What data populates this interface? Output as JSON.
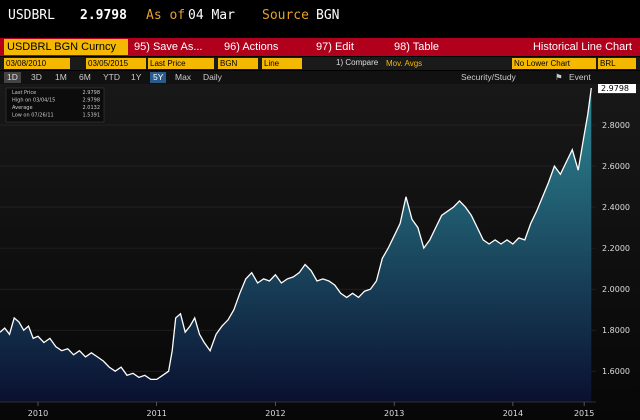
{
  "header": {
    "ticker": "USDBRL",
    "price": "2.9798",
    "as_of_label": "As of",
    "as_of": "04 Mar",
    "source_label": "Source",
    "source": "BGN"
  },
  "menu": {
    "security": "USDBRL BGN Curncy",
    "items": [
      "95) Save As...",
      "96) Actions",
      "97) Edit",
      "98) Table"
    ],
    "title": "Historical Line Chart"
  },
  "controls": {
    "start_date": "03/08/2010",
    "end_date": "03/05/2015",
    "field": "Last Price",
    "source": "BGN",
    "chart_type": "Line",
    "compare_label": "1) Compare",
    "compare_value": "Mov. Avgs",
    "lower_chart": "No Lower Chart",
    "currency": "BRL"
  },
  "range_buttons": [
    "1D",
    "3D",
    "1M",
    "6M",
    "YTD",
    "1Y",
    "5Y",
    "Max"
  ],
  "range_selected": "5Y",
  "periodicity": "Daily",
  "security_study": "Security/Study",
  "event": "Event",
  "legend": {
    "rows": [
      {
        "label": "Last Price",
        "value": "2.9798"
      },
      {
        "label": "High on 03/04/15",
        "value": "2.9798"
      },
      {
        "label": "Average",
        "value": "2.0132"
      },
      {
        "label": "Low on 07/26/11",
        "value": "1.5391"
      }
    ]
  },
  "colors": {
    "accent": "#f5b800",
    "menubar": "#b0001c",
    "line": "#ffffff",
    "area_top": "#2e8a96",
    "area_bottom": "#0a1030"
  },
  "chart_data": {
    "type": "area",
    "title": "",
    "xlabel": "",
    "ylabel": "",
    "ylim": [
      1.45,
      3.0
    ],
    "yticks": [
      1.6,
      1.8,
      2.0,
      2.2,
      2.4,
      2.6,
      2.8
    ],
    "ytick_labels": [
      "1.6000",
      "1.8000",
      "2.0000",
      "2.2000",
      "2.4000",
      "2.6000",
      "2.8000"
    ],
    "last_value_label": "2.9798",
    "xticks": [
      2010.5,
      2011.5,
      2012.5,
      2013.5,
      2014.5,
      2015.1
    ],
    "xtick_labels": [
      "2010",
      "2011",
      "2012",
      "2013",
      "2014",
      "2015"
    ],
    "xlim": [
      2010.18,
      2015.2
    ],
    "series": [
      {
        "x": [
          2010.18,
          2010.22,
          2010.26,
          2010.3,
          2010.34,
          2010.38,
          2010.42,
          2010.46,
          2010.5,
          2010.55,
          2010.6,
          2010.65,
          2010.7,
          2010.75,
          2010.8,
          2010.85,
          2010.9,
          2010.95,
          2011.0,
          2011.05,
          2011.1,
          2011.15,
          2011.2,
          2011.25,
          2011.3,
          2011.35,
          2011.4,
          2011.45,
          2011.5,
          2011.55,
          2011.6,
          2011.63,
          2011.66,
          2011.7,
          2011.74,
          2011.78,
          2011.82,
          2011.86,
          2011.9,
          2011.95,
          2012.0,
          2012.05,
          2012.1,
          2012.15,
          2012.2,
          2012.25,
          2012.3,
          2012.35,
          2012.4,
          2012.45,
          2012.5,
          2012.55,
          2012.6,
          2012.65,
          2012.7,
          2012.75,
          2012.8,
          2012.85,
          2012.9,
          2012.95,
          2013.0,
          2013.05,
          2013.1,
          2013.15,
          2013.2,
          2013.25,
          2013.3,
          2013.35,
          2013.4,
          2013.45,
          2013.5,
          2013.55,
          2013.6,
          2013.65,
          2013.7,
          2013.75,
          2013.8,
          2013.85,
          2013.9,
          2013.95,
          2014.0,
          2014.05,
          2014.1,
          2014.15,
          2014.2,
          2014.25,
          2014.3,
          2014.35,
          2014.4,
          2014.45,
          2014.5,
          2014.55,
          2014.6,
          2014.65,
          2014.7,
          2014.75,
          2014.8,
          2014.85,
          2014.9,
          2014.95,
          2015.0,
          2015.05,
          2015.1,
          2015.13,
          2015.16
        ],
        "y": [
          1.79,
          1.81,
          1.78,
          1.86,
          1.84,
          1.8,
          1.82,
          1.76,
          1.77,
          1.74,
          1.76,
          1.72,
          1.7,
          1.71,
          1.68,
          1.7,
          1.67,
          1.69,
          1.67,
          1.65,
          1.62,
          1.6,
          1.62,
          1.58,
          1.59,
          1.57,
          1.58,
          1.56,
          1.56,
          1.58,
          1.6,
          1.7,
          1.86,
          1.88,
          1.79,
          1.82,
          1.86,
          1.78,
          1.74,
          1.7,
          1.78,
          1.82,
          1.85,
          1.9,
          1.98,
          2.05,
          2.08,
          2.03,
          2.05,
          2.04,
          2.07,
          2.03,
          2.05,
          2.06,
          2.08,
          2.12,
          2.09,
          2.04,
          2.05,
          2.04,
          2.02,
          1.98,
          1.96,
          1.98,
          1.96,
          1.99,
          2.0,
          2.04,
          2.15,
          2.2,
          2.26,
          2.32,
          2.45,
          2.34,
          2.3,
          2.2,
          2.24,
          2.3,
          2.36,
          2.38,
          2.4,
          2.43,
          2.4,
          2.36,
          2.3,
          2.24,
          2.22,
          2.24,
          2.22,
          2.24,
          2.22,
          2.25,
          2.24,
          2.32,
          2.38,
          2.45,
          2.52,
          2.6,
          2.56,
          2.62,
          2.68,
          2.58,
          2.75,
          2.85,
          2.98
        ]
      }
    ]
  }
}
